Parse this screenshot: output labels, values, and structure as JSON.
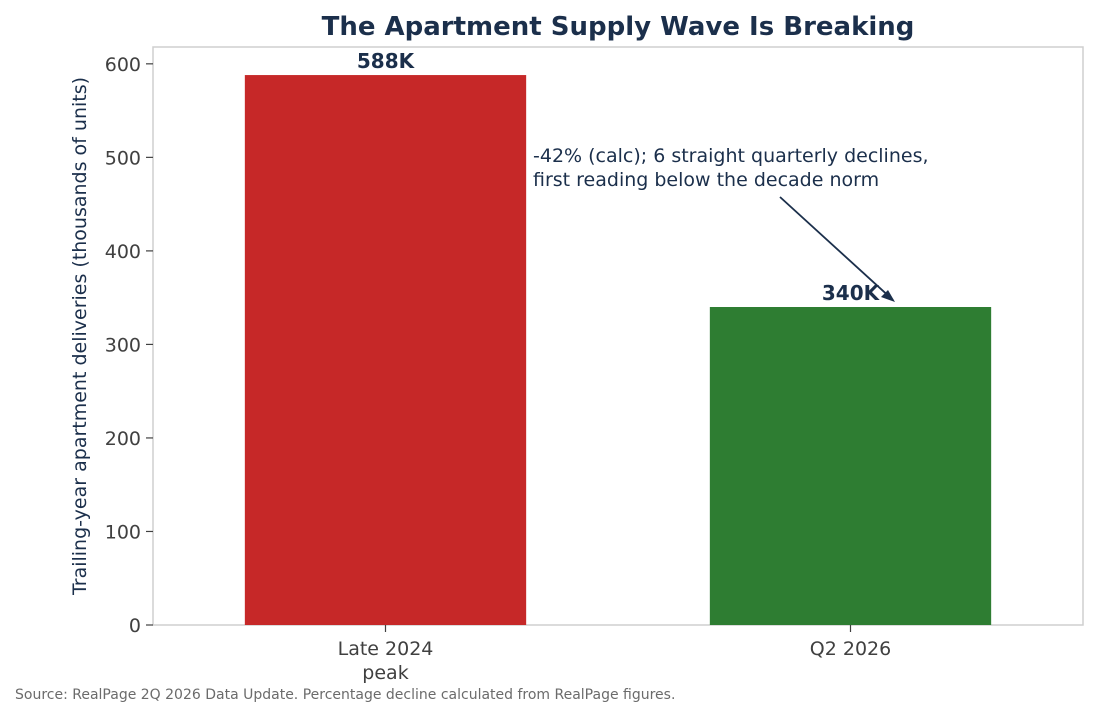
{
  "chart_data": {
    "type": "bar",
    "title": "The Apartment Supply Wave Is Breaking",
    "xlabel": "",
    "ylabel": "Trailing-year apartment deliveries (thousands of units)",
    "categories": [
      [
        "Late 2024",
        "peak"
      ],
      [
        "Q2 2026"
      ]
    ],
    "values": [
      588,
      340
    ],
    "data_labels": [
      "588K",
      "340K"
    ],
    "bar_colors": [
      "#c62828",
      "#2e7d32"
    ],
    "ylim": [
      0,
      618
    ],
    "yticks": [
      0,
      100,
      200,
      300,
      400,
      500,
      600
    ],
    "grid": false,
    "annotation": {
      "lines": [
        "-42% (calc); 6 straight quarterly declines,",
        "first reading below the decade norm"
      ],
      "points_to_category_index": 1
    },
    "source": "Source: RealPage 2Q 2026 Data Update. Percentage decline calculated from RealPage figures."
  },
  "colors": {
    "title": "#1b2f4b",
    "axis": "#cfcfcf",
    "tick_text": "#404040",
    "annotation": "#1b2f4b",
    "source_text": "#6b6b6b"
  }
}
